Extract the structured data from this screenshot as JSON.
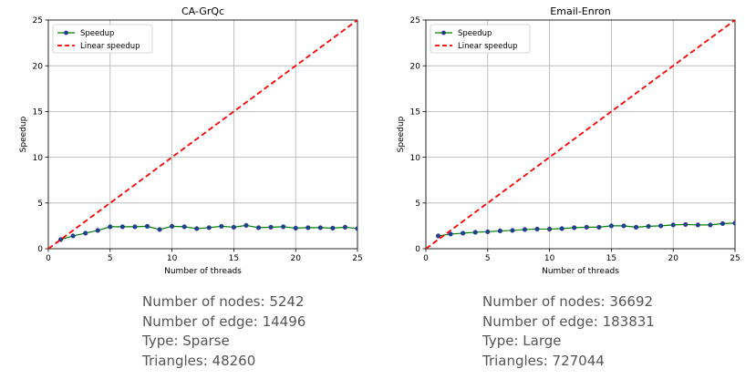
{
  "chart_data": [
    {
      "type": "line",
      "title": "CA-GrQc",
      "xlabel": "Number of threads",
      "ylabel": "Speedup",
      "xlim": [
        0,
        25
      ],
      "ylim": [
        0,
        25
      ],
      "xticks": [
        0,
        5,
        10,
        15,
        20,
        25
      ],
      "yticks": [
        0,
        5,
        10,
        15,
        20,
        25
      ],
      "grid": true,
      "legend_position": "top-left",
      "series": [
        {
          "name": "Speedup",
          "color": "#008000",
          "marker_color": "#1f3f8f",
          "style": "solid-with-markers",
          "x": [
            1,
            2,
            3,
            4,
            5,
            6,
            7,
            8,
            9,
            10,
            11,
            12,
            13,
            14,
            15,
            16,
            17,
            18,
            19,
            20,
            21,
            22,
            23,
            24,
            25
          ],
          "y": [
            1.0,
            1.4,
            1.7,
            2.0,
            2.4,
            2.4,
            2.4,
            2.45,
            2.1,
            2.45,
            2.4,
            2.2,
            2.3,
            2.45,
            2.35,
            2.55,
            2.3,
            2.35,
            2.4,
            2.25,
            2.3,
            2.3,
            2.25,
            2.35,
            2.2
          ]
        },
        {
          "name": "Linear speedup",
          "color": "#ff0000",
          "style": "dashed",
          "x": [
            0,
            25
          ],
          "y": [
            0,
            25
          ]
        }
      ]
    },
    {
      "type": "line",
      "title": "Email-Enron",
      "xlabel": "Number of threads",
      "ylabel": "Speedup",
      "xlim": [
        0,
        25
      ],
      "ylim": [
        0,
        25
      ],
      "xticks": [
        0,
        5,
        10,
        15,
        20,
        25
      ],
      "yticks": [
        0,
        5,
        10,
        15,
        20,
        25
      ],
      "grid": true,
      "legend_position": "top-left",
      "series": [
        {
          "name": "Speedup",
          "color": "#008000",
          "marker_color": "#1f3f8f",
          "style": "solid-with-markers",
          "x": [
            1,
            2,
            3,
            4,
            5,
            6,
            7,
            8,
            9,
            10,
            11,
            12,
            13,
            14,
            15,
            16,
            17,
            18,
            19,
            20,
            21,
            22,
            23,
            24,
            25
          ],
          "y": [
            1.4,
            1.6,
            1.7,
            1.8,
            1.85,
            1.95,
            2.0,
            2.1,
            2.15,
            2.15,
            2.2,
            2.3,
            2.35,
            2.35,
            2.5,
            2.5,
            2.35,
            2.45,
            2.5,
            2.6,
            2.65,
            2.6,
            2.6,
            2.75,
            2.8
          ]
        },
        {
          "name": "Linear speedup",
          "color": "#ff0000",
          "style": "dashed",
          "x": [
            0,
            25
          ],
          "y": [
            0,
            25
          ]
        }
      ]
    }
  ],
  "stats": [
    {
      "nodes": "Number of nodes: 5242",
      "edges": "Number of edge: 14496",
      "type": "Type: Sparse",
      "triangles": "Triangles: 48260"
    },
    {
      "nodes": "Number of nodes: 36692",
      "edges": "Number of edge: 183831",
      "type": "Type: Large",
      "triangles": "Triangles: 727044"
    }
  ]
}
